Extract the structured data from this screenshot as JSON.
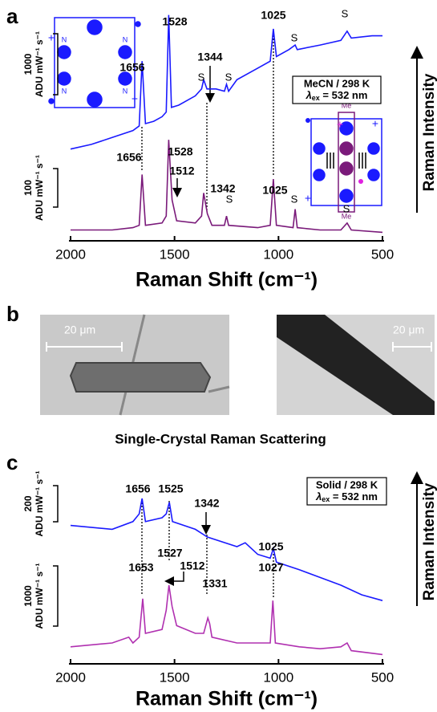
{
  "panel_labels": [
    "a",
    "b",
    "c"
  ],
  "chart_data": [
    {
      "type": "line",
      "xlabel": "Raman Shift (cm⁻¹)",
      "ylabel": "Raman Intensity",
      "xlim": [
        2000,
        500
      ],
      "xticks": [
        2000,
        1500,
        1000,
        500
      ],
      "ylim": [
        0,
        100
      ],
      "series": [
        {
          "color": "#1a1aff",
          "x": [
            2000,
            1900,
            1800,
            1700,
            1670,
            1656,
            1640,
            1600,
            1560,
            1540,
            1528,
            1515,
            1480,
            1400,
            1370,
            1360,
            1344,
            1300,
            1260,
            1250,
            1240,
            1200,
            1100,
            1040,
            1025,
            1010,
            950,
            920,
            910,
            800,
            700,
            670,
            650,
            550,
            500
          ],
          "values": [
            39,
            41,
            44,
            47,
            49,
            77,
            50,
            51,
            53,
            55,
            97,
            57,
            58,
            62,
            65,
            69,
            65,
            65,
            64,
            67,
            64,
            69,
            74,
            77,
            91,
            79,
            82,
            84,
            82,
            84,
            86,
            90,
            87,
            88,
            88
          ]
        },
        {
          "color": "#7a1a7a",
          "x": [
            2000,
            1800,
            1700,
            1670,
            1656,
            1640,
            1560,
            1540,
            1528,
            1512,
            1490,
            1400,
            1370,
            1360,
            1342,
            1320,
            1260,
            1250,
            1240,
            1100,
            1040,
            1025,
            1010,
            930,
            920,
            910,
            800,
            700,
            670,
            650,
            500
          ],
          "values": [
            4,
            4,
            5,
            6,
            28,
            6,
            7,
            10,
            43,
            17,
            8,
            7,
            10,
            20,
            11,
            6,
            6,
            10,
            6,
            5,
            6,
            26,
            6,
            5,
            13,
            5,
            4,
            4,
            7,
            4,
            3
          ]
        }
      ],
      "annotations": [
        "1656",
        "1528",
        "S",
        "S",
        "1344",
        "1025",
        "S",
        "S",
        "1528",
        "1656",
        "1512",
        "1342",
        "1025",
        "S",
        "S",
        "S"
      ],
      "scale_bars": [
        {
          "value": 1000,
          "unit": "ADU mW⁻¹ s⁻¹"
        },
        {
          "value": 100,
          "unit": "ADU mW⁻¹ s⁻¹"
        }
      ],
      "conditions": {
        "line1": "MeCN / 298 K",
        "symbol": "λ",
        "subscript": "ex",
        "line2": " = 532 nm"
      }
    },
    {
      "type": "line",
      "xlabel": "Raman Shift (cm⁻¹)",
      "ylabel": "Raman Intensity",
      "xlim": [
        2000,
        500
      ],
      "xticks": [
        2000,
        1500,
        1000,
        500
      ],
      "ylim": [
        0,
        100
      ],
      "series": [
        {
          "color": "#1a1aff",
          "x": [
            2000,
            1800,
            1700,
            1670,
            1656,
            1640,
            1560,
            1540,
            1525,
            1510,
            1400,
            1342,
            1200,
            1160,
            1100,
            1040,
            1025,
            1010,
            900,
            800,
            700,
            600,
            500
          ],
          "values": [
            71,
            69,
            73,
            77,
            85,
            73,
            75,
            77,
            83,
            73,
            69,
            65,
            60,
            62,
            56,
            54,
            59,
            52,
            48,
            44,
            40,
            35,
            32
          ]
        },
        {
          "color": "#b030b0",
          "x": [
            2000,
            1800,
            1720,
            1700,
            1670,
            1653,
            1640,
            1560,
            1540,
            1527,
            1512,
            1490,
            1400,
            1360,
            1340,
            1331,
            1320,
            1200,
            1100,
            1040,
            1027,
            1015,
            900,
            800,
            700,
            670,
            650,
            500
          ],
          "values": [
            8,
            10,
            13,
            10,
            13,
            33,
            15,
            17,
            27,
            40,
            29,
            19,
            15,
            15,
            23,
            20,
            13,
            10,
            10,
            10,
            32,
            10,
            8,
            7,
            8,
            10,
            6,
            4
          ]
        }
      ],
      "annotations": [
        "1656",
        "1525",
        "1342",
        "1025",
        "1653",
        "1527",
        "1512",
        "1331",
        "1027"
      ],
      "scale_bars": [
        {
          "value": 200,
          "unit": "ADU mW⁻¹ s⁻¹"
        },
        {
          "value": 1000,
          "unit": "ADU mW⁻¹ s⁻¹"
        }
      ],
      "conditions": {
        "line1": "Solid / 298 K",
        "symbol": "λ",
        "subscript": "ex",
        "line2": " = 532 nm"
      }
    }
  ],
  "panel_b": {
    "scale_bar_left": "20 μm",
    "scale_bar_right": "20 μm",
    "caption": "Single-Crystal Raman Scattering"
  },
  "structures": {
    "atom": "N",
    "methyl": "Me",
    "charge": "+"
  }
}
